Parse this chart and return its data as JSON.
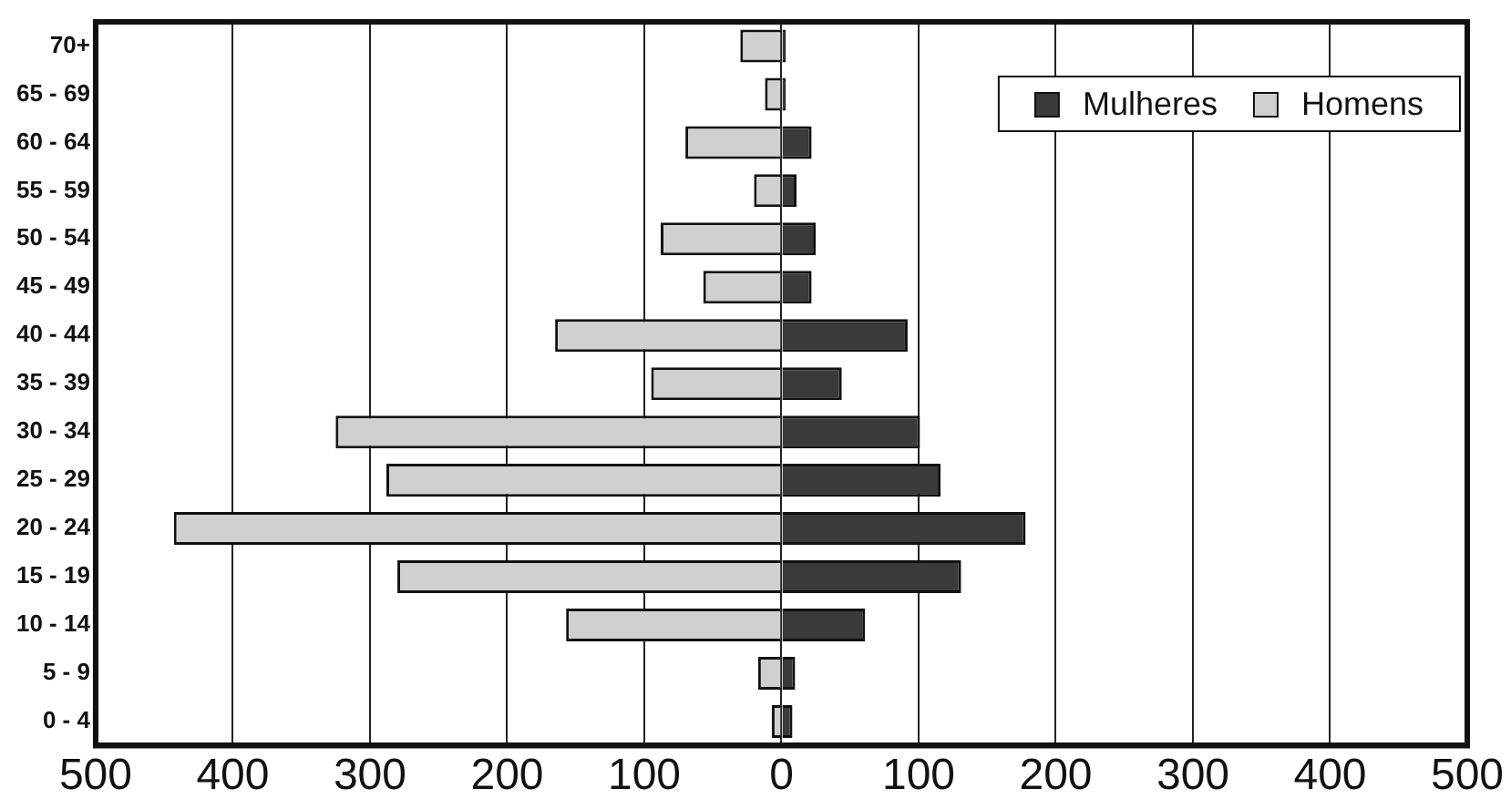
{
  "chart_data": {
    "type": "bar",
    "orientation": "horizontal",
    "stacked": true,
    "categories": [
      "70+",
      "65 - 69",
      "60 - 64",
      "55 - 59",
      "50 - 54",
      "45 - 49",
      "40 - 44",
      "35 - 39",
      "30 - 34",
      "25 - 29",
      "20 - 24",
      "15 - 19",
      "10 - 14",
      "5 - 9",
      "0 - 4"
    ],
    "series": [
      {
        "name": "Mulheres",
        "color": "#3a3a3a",
        "values": [
          3,
          3,
          22,
          11,
          25,
          22,
          92,
          44,
          101,
          116,
          178,
          131,
          61,
          10,
          8
        ]
      },
      {
        "name": "Homens",
        "color": "#d0d0d0",
        "values": [
          -30,
          -12,
          -70,
          -20,
          -88,
          -57,
          -165,
          -95,
          -325,
          -288,
          -443,
          -280,
          -157,
          -17,
          -7
        ]
      }
    ],
    "xlim": [
      -500,
      500
    ],
    "xticks": [
      {
        "value": -500,
        "label": "500"
      },
      {
        "value": -400,
        "label": "400"
      },
      {
        "value": -300,
        "label": "300"
      },
      {
        "value": -200,
        "label": "200"
      },
      {
        "value": -100,
        "label": "100"
      },
      0,
      100,
      200,
      300,
      400,
      500
    ],
    "grid": "x",
    "legend": "top right"
  }
}
